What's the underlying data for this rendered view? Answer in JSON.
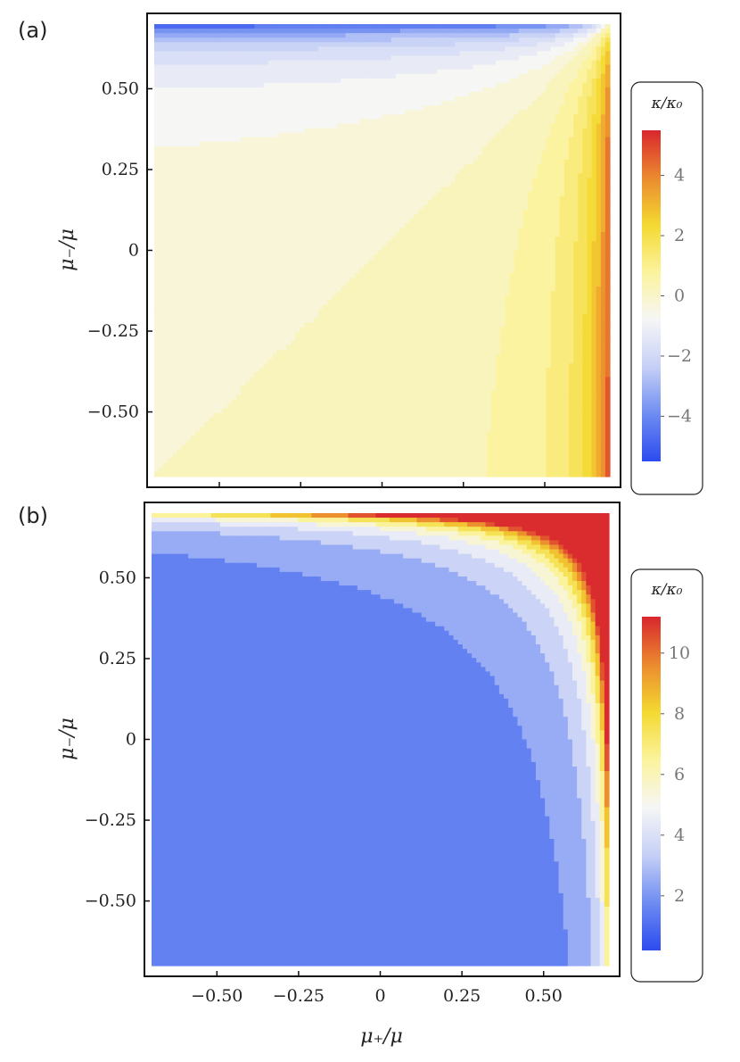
{
  "chart_data": [
    {
      "type": "contour",
      "panel_label": "(a)",
      "xlabel": "μ₊/μ",
      "ylabel": "μ₋/μ",
      "xlim": [
        -0.7,
        0.7
      ],
      "ylim": [
        -0.7,
        0.7
      ],
      "x_ticks": [
        -0.5,
        -0.25,
        0,
        0.25,
        0.5
      ],
      "y_ticks": [
        -0.5,
        -0.25,
        0,
        0.25,
        0.5
      ],
      "x_tick_labels": [
        "",
        "",
        "",
        "",
        ""
      ],
      "y_tick_labels": [
        "−0.50",
        "−0.25",
        "0",
        "0.25",
        "0.50"
      ],
      "colorbar": {
        "title": "κ/κ₀",
        "range": [
          -5.5,
          5.5
        ],
        "ticks": [
          -4,
          -2,
          0,
          2,
          4
        ],
        "tick_labels": [
          "−4",
          "−2",
          "0",
          "2",
          "4"
        ],
        "colors": [
          "#2c4bef",
          "#6e8cf2",
          "#c6d0f6",
          "#f6f6f6",
          "#fbf39d",
          "#f4d931",
          "#eb8a2f",
          "#d9262e"
        ]
      },
      "contour_levels": [
        -5,
        -4.5,
        -4,
        -3.5,
        -3,
        -2.5,
        -2,
        -1.5,
        -1,
        -0.5,
        0,
        0.5,
        1,
        1.5,
        2,
        2.5,
        3,
        3.5,
        4,
        4.5,
        5
      ],
      "grid": false
    },
    {
      "type": "contour",
      "panel_label": "(b)",
      "xlabel": "μ₊/μ",
      "ylabel": "μ₋/μ",
      "xlim": [
        -0.7,
        0.7
      ],
      "ylim": [
        -0.7,
        0.7
      ],
      "x_ticks": [
        -0.5,
        -0.25,
        0,
        0.25,
        0.5
      ],
      "y_ticks": [
        -0.5,
        -0.25,
        0,
        0.25,
        0.5
      ],
      "x_tick_labels": [
        "−0.50",
        "−0.25",
        "0",
        "0.25",
        "0.50"
      ],
      "y_tick_labels": [
        "−0.50",
        "−0.25",
        "0",
        "0.25",
        "0.50"
      ],
      "colorbar": {
        "title": "κ/κ₀",
        "range": [
          0.2,
          11.2
        ],
        "ticks": [
          2,
          4,
          6,
          8,
          10
        ],
        "tick_labels": [
          "2",
          "4",
          "6",
          "8",
          "10"
        ],
        "colors": [
          "#2c4bef",
          "#6e8cf2",
          "#c6d0f6",
          "#f6f6f6",
          "#fbf39d",
          "#f4d931",
          "#eb8a2f",
          "#d9262e"
        ]
      },
      "contour_levels": [
        1,
        2,
        3,
        4,
        5,
        6,
        7,
        8,
        9,
        10,
        11
      ],
      "grid": false
    }
  ]
}
